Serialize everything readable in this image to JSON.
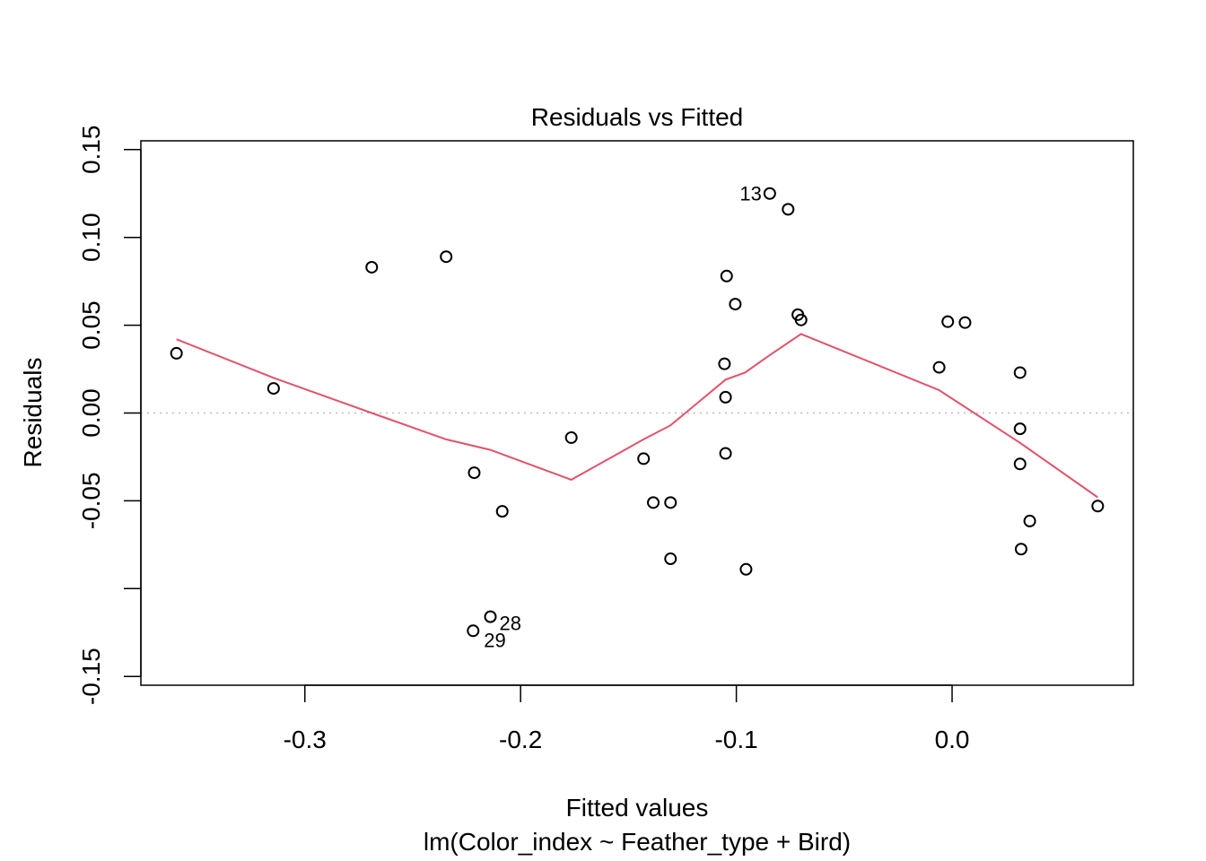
{
  "chart_data": {
    "type": "scatter",
    "title": "Residuals vs Fitted",
    "xlabel": "Fitted values",
    "ylabel": "Residuals",
    "subtitle": "lm(Color_index ~ Feather_type + Bird)",
    "xlim": [
      -0.376,
      0.084
    ],
    "ylim": [
      -0.155,
      0.155
    ],
    "x_ticks": [
      -0.3,
      -0.2,
      -0.1,
      0.0
    ],
    "x_tick_labels": [
      "-0.3",
      "-0.2",
      "-0.1",
      "0.0"
    ],
    "y_ticks": [
      -0.15,
      -0.1,
      -0.05,
      0.0,
      0.05,
      0.1,
      0.15
    ],
    "y_tick_labels": [
      "-0.15",
      "",
      "-0.05",
      "0.00",
      "0.05",
      "0.10",
      "0.15"
    ],
    "reference_line": {
      "y": 0,
      "style": "dotted",
      "color": "#bebebe"
    },
    "points": [
      {
        "x": -0.3595,
        "y": 0.034
      },
      {
        "x": -0.3145,
        "y": 0.014
      },
      {
        "x": -0.269,
        "y": 0.083
      },
      {
        "x": -0.2345,
        "y": 0.089
      },
      {
        "x": -0.2215,
        "y": -0.034
      },
      {
        "x": -0.2085,
        "y": -0.056
      },
      {
        "x": -0.214,
        "y": -0.116,
        "label": "28"
      },
      {
        "x": -0.222,
        "y": -0.124,
        "label": "29"
      },
      {
        "x": -0.1765,
        "y": -0.014
      },
      {
        "x": -0.143,
        "y": -0.026
      },
      {
        "x": -0.1385,
        "y": -0.051
      },
      {
        "x": -0.1305,
        "y": -0.051
      },
      {
        "x": -0.1305,
        "y": -0.083
      },
      {
        "x": -0.1055,
        "y": 0.028
      },
      {
        "x": -0.105,
        "y": 0.009
      },
      {
        "x": -0.105,
        "y": -0.023
      },
      {
        "x": -0.1045,
        "y": 0.078
      },
      {
        "x": -0.1005,
        "y": 0.062
      },
      {
        "x": -0.0955,
        "y": -0.089
      },
      {
        "x": -0.0845,
        "y": 0.125,
        "label": "13"
      },
      {
        "x": -0.076,
        "y": 0.116
      },
      {
        "x": -0.0715,
        "y": 0.056
      },
      {
        "x": -0.07,
        "y": 0.053
      },
      {
        "x": -0.006,
        "y": 0.026
      },
      {
        "x": -0.002,
        "y": 0.052
      },
      {
        "x": 0.006,
        "y": 0.0515
      },
      {
        "x": 0.0315,
        "y": 0.023
      },
      {
        "x": 0.0315,
        "y": -0.009
      },
      {
        "x": 0.0315,
        "y": -0.029
      },
      {
        "x": 0.036,
        "y": -0.0615
      },
      {
        "x": 0.032,
        "y": -0.0775
      },
      {
        "x": 0.0675,
        "y": -0.053
      }
    ],
    "smoother": {
      "color": "#df536b",
      "x": [
        -0.3595,
        -0.3145,
        -0.269,
        -0.2345,
        -0.214,
        -0.1765,
        -0.143,
        -0.1305,
        -0.105,
        -0.096,
        -0.0845,
        -0.07,
        -0.006,
        0.0315,
        0.0675
      ],
      "y": [
        0.042,
        0.02,
        0.0,
        -0.015,
        -0.021,
        -0.038,
        -0.015,
        -0.007,
        0.019,
        0.023,
        0.033,
        0.045,
        0.013,
        -0.017,
        -0.048
      ]
    }
  }
}
